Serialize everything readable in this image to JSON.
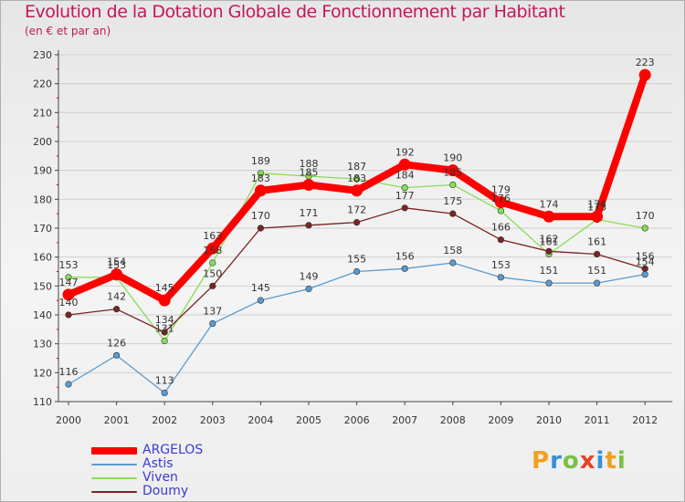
{
  "chart_data": {
    "type": "line",
    "title": "Evolution de la Dotation Globale de Fonctionnement par Habitant",
    "subtitle": "(en € et par an)",
    "categories": [
      "2000",
      "2001",
      "2002",
      "2003",
      "2004",
      "2005",
      "2006",
      "2007",
      "2008",
      "2009",
      "2010",
      "2011",
      "2012"
    ],
    "ylim": [
      110,
      230
    ],
    "yticks": [
      110,
      120,
      130,
      140,
      150,
      160,
      170,
      180,
      190,
      200,
      210,
      220,
      230
    ],
    "series": [
      {
        "name": "ARGELOS",
        "color": "#ff0000",
        "values": [
          147,
          154,
          145,
          163,
          183,
          185,
          183,
          192,
          190,
          179,
          174,
          174,
          223
        ]
      },
      {
        "name": "Astis",
        "color": "#5a9bd0",
        "values": [
          116,
          126,
          113,
          137,
          145,
          149,
          155,
          156,
          158,
          153,
          151,
          151,
          154
        ]
      },
      {
        "name": "Viven",
        "color": "#88dd55",
        "values": [
          153,
          153,
          131,
          158,
          189,
          188,
          187,
          184,
          185,
          176,
          161,
          173,
          170
        ]
      },
      {
        "name": "Doumy",
        "color": "#7a2323",
        "values": [
          140,
          142,
          134,
          150,
          170,
          171,
          172,
          177,
          175,
          166,
          162,
          161,
          156
        ]
      }
    ]
  },
  "logo": {
    "text": "Proxiti"
  }
}
